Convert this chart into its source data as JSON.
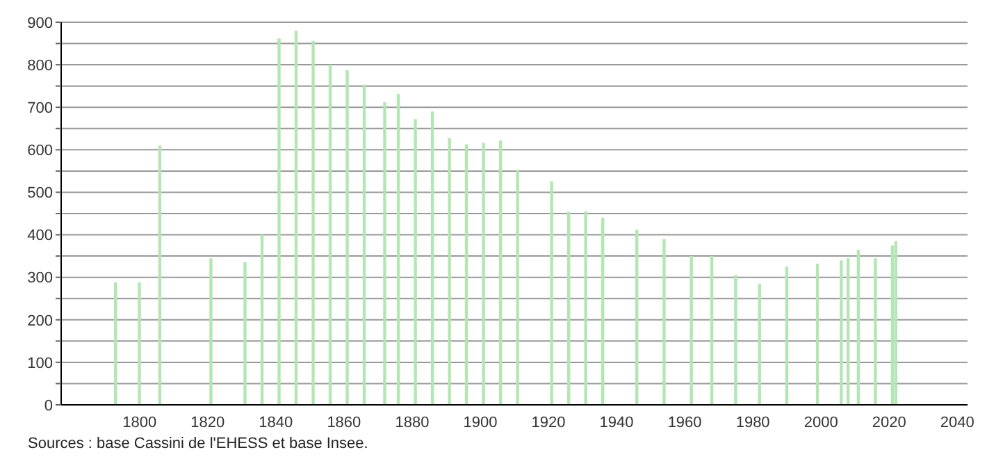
{
  "chart_data": {
    "type": "bar",
    "x": [
      1793,
      1800,
      1806,
      1821,
      1831,
      1836,
      1841,
      1846,
      1851,
      1856,
      1861,
      1866,
      1872,
      1876,
      1881,
      1886,
      1891,
      1896,
      1901,
      1906,
      1911,
      1921,
      1926,
      1931,
      1936,
      1946,
      1954,
      1962,
      1968,
      1975,
      1982,
      1990,
      1999,
      2006,
      2008,
      2011,
      2016,
      2021,
      2022
    ],
    "values": [
      288,
      288,
      610,
      345,
      336,
      400,
      862,
      880,
      856,
      800,
      787,
      753,
      712,
      731,
      672,
      690,
      628,
      613,
      616,
      622,
      553,
      526,
      454,
      455,
      440,
      412,
      390,
      350,
      350,
      305,
      285,
      325,
      332,
      340,
      345,
      365,
      345,
      375,
      385
    ],
    "color": "#b3e6b3",
    "xlim": [
      1777,
      2043
    ],
    "xticks": [
      1800,
      1820,
      1840,
      1860,
      1880,
      1900,
      1920,
      1940,
      1960,
      1980,
      2000,
      2020,
      2040
    ],
    "ylim": [
      0,
      900
    ],
    "yticks": [
      0,
      {
        "value": 50,
        "label": null
      },
      100,
      {
        "value": 150,
        "label": null
      },
      200,
      {
        "value": 250,
        "label": null
      },
      300,
      {
        "value": 350,
        "label": null
      },
      400,
      {
        "value": 450,
        "label": null
      },
      500,
      {
        "value": 550,
        "label": null
      },
      600,
      {
        "value": 650,
        "label": null
      },
      700,
      {
        "value": 750,
        "label": null
      },
      800,
      {
        "value": 850,
        "label": null
      },
      900
    ],
    "grid": "y",
    "annotations": [
      "Sources : base Cassini de l'EHESS et base Insee."
    ]
  }
}
